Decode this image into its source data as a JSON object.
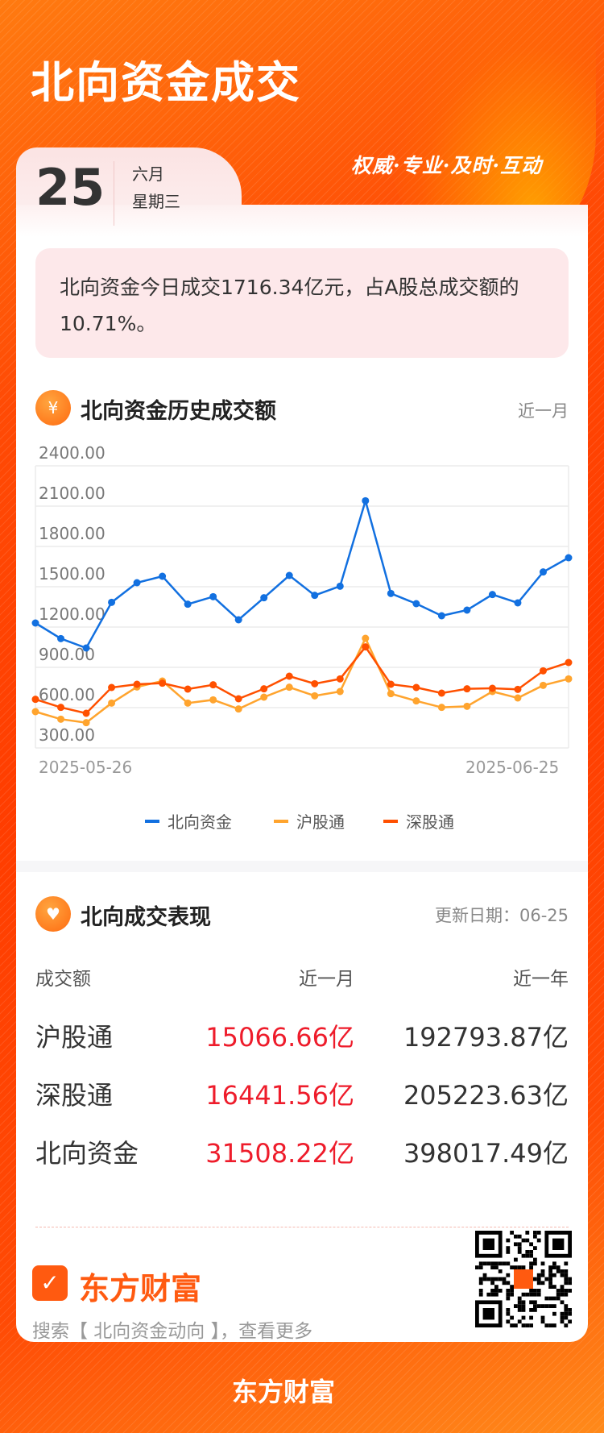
{
  "header": {
    "title": "北向资金成交",
    "slogan": "权威·专业·及时·互动"
  },
  "date": {
    "day": "25",
    "month": "六月",
    "weekday": "星期三"
  },
  "summary": "北向资金今日成交1716.34亿元，占A股总成交额的10.71%。",
  "watermark": "东方财富",
  "history": {
    "title": "北向资金历史成交额",
    "period": "近一月"
  },
  "chart_data": {
    "type": "line",
    "x_labels_shown": [
      "2025-05-26",
      "2025-06-25"
    ],
    "y_ticks": [
      "2400.00",
      "2100.00",
      "1800.00",
      "1500.00",
      "1200.00",
      "900.00",
      "600.00",
      "300.00"
    ],
    "ylim": [
      300,
      2400
    ],
    "grid": true,
    "legend_position": "bottom",
    "series": [
      {
        "name": "北向资金",
        "color": "#1270e0",
        "values": [
          1230,
          1114,
          1044,
          1384,
          1530,
          1578,
          1370,
          1426,
          1254,
          1418,
          1584,
          1436,
          1504,
          2140,
          1450,
          1374,
          1284,
          1326,
          1442,
          1380,
          1610,
          1716
        ]
      },
      {
        "name": "沪股通",
        "color": "#ffa42e",
        "values": [
          570,
          514,
          488,
          634,
          754,
          798,
          634,
          658,
          590,
          678,
          752,
          688,
          720,
          1116,
          704,
          650,
          602,
          610,
          720,
          672,
          766,
          814
        ]
      },
      {
        "name": "深股通",
        "color": "#ff5000",
        "values": [
          662,
          602,
          558,
          750,
          774,
          782,
          738,
          770,
          666,
          740,
          834,
          778,
          814,
          1052,
          774,
          750,
          708,
          740,
          744,
          736,
          874,
          936
        ]
      }
    ]
  },
  "performance": {
    "title": "北向成交表现",
    "update": "更新日期：06-25",
    "columns": [
      "成交额",
      "近一月",
      "近一年"
    ],
    "rows": [
      {
        "name": "沪股通",
        "month": "15066.66亿",
        "year": "192793.87亿"
      },
      {
        "name": "深股通",
        "month": "16441.56亿",
        "year": "205223.63亿"
      },
      {
        "name": "北向资金",
        "month": "31508.22亿",
        "year": "398017.49亿"
      }
    ]
  },
  "footer": {
    "brand": "东方财富",
    "search_hint": "搜索【 北向资金动向 】，查看更多",
    "bottom_brand": "东方财富"
  }
}
